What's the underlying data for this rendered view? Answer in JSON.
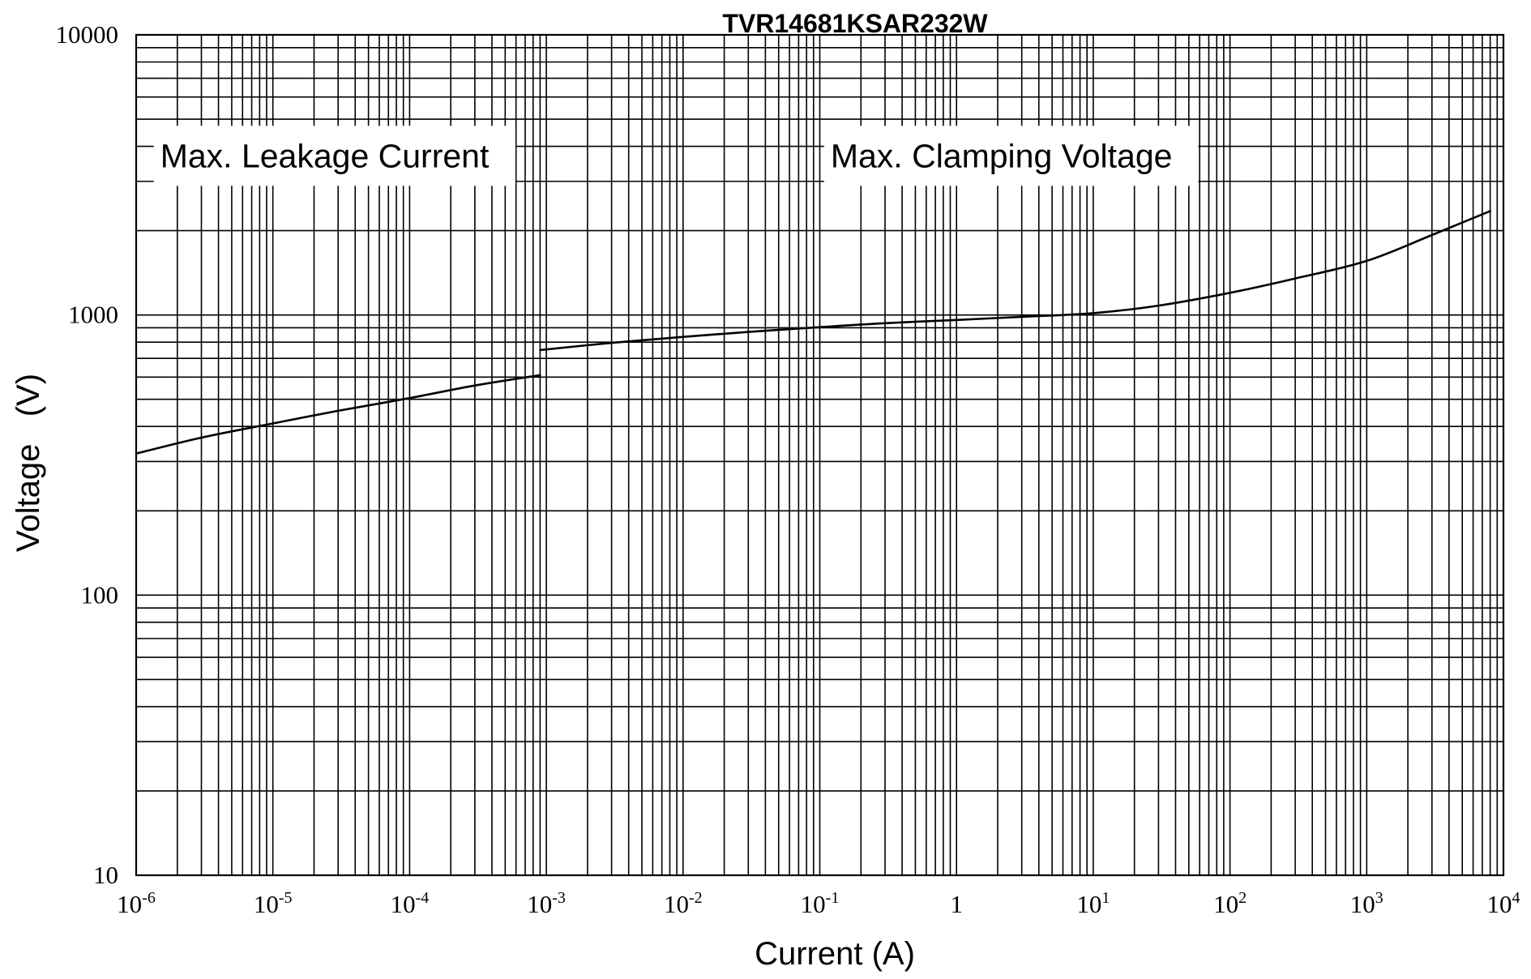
{
  "chart_data": {
    "type": "line",
    "title": "TVR14681KSAR232W",
    "xlabel": "Current (A)",
    "ylabel": "Voltage   (V)",
    "x_scale": "log",
    "y_scale": "log",
    "xlim": [
      1e-06,
      10000
    ],
    "ylim": [
      10,
      10000
    ],
    "grid": true,
    "x_ticks": [
      {
        "value": 1e-06,
        "base": "10",
        "exp": "-6"
      },
      {
        "value": 1e-05,
        "base": "10",
        "exp": "-5"
      },
      {
        "value": 0.0001,
        "base": "10",
        "exp": "-4"
      },
      {
        "value": 0.001,
        "base": "10",
        "exp": "-3"
      },
      {
        "value": 0.01,
        "base": "10",
        "exp": "-2"
      },
      {
        "value": 0.1,
        "base": "10",
        "exp": "-1"
      },
      {
        "value": 1,
        "base": "1",
        "exp": ""
      },
      {
        "value": 10,
        "base": "10",
        "exp": "1"
      },
      {
        "value": 100,
        "base": "10",
        "exp": "2"
      },
      {
        "value": 1000,
        "base": "10",
        "exp": "3"
      },
      {
        "value": 10000,
        "base": "10",
        "exp": "4"
      }
    ],
    "y_ticks": [
      {
        "value": 10,
        "label": "10"
      },
      {
        "value": 100,
        "label": "100"
      },
      {
        "value": 1000,
        "label": "1000"
      },
      {
        "value": 10000,
        "label": "10000"
      }
    ],
    "annotations": [
      {
        "text": "Max. Leakage Current",
        "x": 1.5e-06,
        "y": 3700
      },
      {
        "text": "Max.  Clamping  Voltage",
        "x": 0.12,
        "y": 3700
      }
    ],
    "series": [
      {
        "name": "",
        "x": [
          1e-06,
          3e-06,
          1e-05,
          3e-05,
          0.0001,
          0.0003,
          0.0009
        ],
        "y": [
          320,
          365,
          410,
          455,
          505,
          560,
          610
        ]
      },
      {
        "name": "",
        "x": [
          0.0009,
          0.003,
          0.01,
          0.03,
          0.1,
          0.3,
          1,
          3,
          10,
          30,
          100,
          300,
          1000,
          3000,
          8000
        ],
        "y": [
          750,
          795,
          835,
          870,
          905,
          935,
          960,
          985,
          1015,
          1080,
          1200,
          1350,
          1560,
          1930,
          2350
        ]
      }
    ]
  }
}
